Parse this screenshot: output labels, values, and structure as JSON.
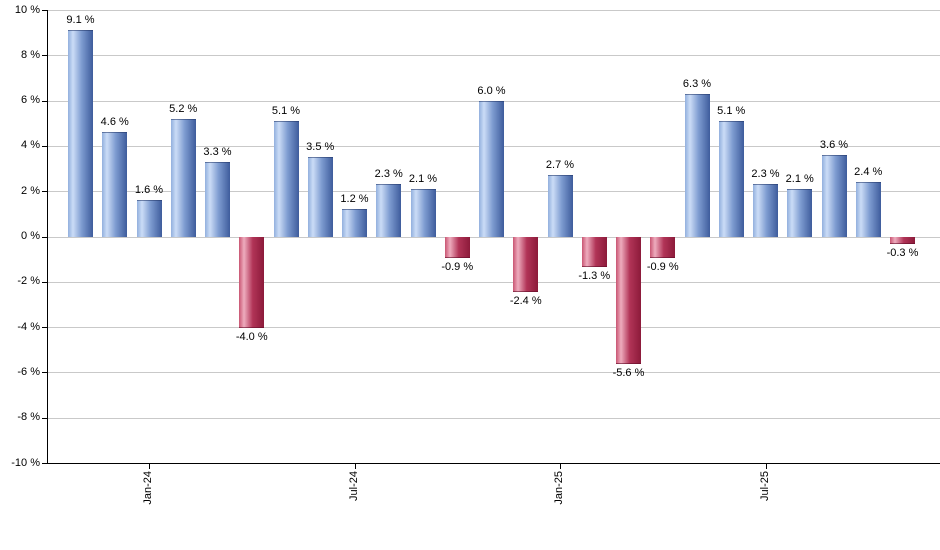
{
  "chart_data": {
    "type": "bar",
    "title": "",
    "xlabel": "",
    "ylabel": "",
    "ylim": [
      -10,
      10
    ],
    "y_tick_step": 2,
    "grid": true,
    "legend": false,
    "values": [
      9.1,
      4.6,
      1.6,
      5.2,
      3.3,
      -4.0,
      5.1,
      3.5,
      1.2,
      2.3,
      2.1,
      -0.9,
      6.0,
      -2.4,
      2.7,
      -1.3,
      -5.6,
      -0.9,
      6.3,
      5.1,
      2.3,
      2.1,
      3.6,
      2.4,
      -0.3
    ],
    "value_labels": [
      "9.1 %",
      "4.6 %",
      "1.6 %",
      "5.2 %",
      "3.3 %",
      "-4.0 %",
      "5.1 %",
      "3.5 %",
      "1.2 %",
      "2.3 %",
      "2.1 %",
      "-0.9 %",
      "6.0 %",
      "-2.4 %",
      "2.7 %",
      "-1.3 %",
      "-5.6 %",
      "-0.9 %",
      "6.3 %",
      "5.1 %",
      "2.3 %",
      "2.1 %",
      "3.6 %",
      "2.4 %",
      "-0.3 %"
    ],
    "y_tick_labels": [
      "10 %",
      "8 %",
      "6 %",
      "4 %",
      "2 %",
      "0 %",
      "-2 %",
      "-4 %",
      "-6 %",
      "-8 %",
      "-10 %"
    ],
    "y_tick_values": [
      10,
      8,
      6,
      4,
      2,
      0,
      -2,
      -4,
      -6,
      -8,
      -10
    ],
    "x_ticks": [
      {
        "bar_index": 2,
        "label": "Jan-24"
      },
      {
        "bar_index": 8,
        "label": "Jul-24"
      },
      {
        "bar_index": 14,
        "label": "Jan-25"
      },
      {
        "bar_index": 20,
        "label": "Jul-25"
      }
    ],
    "colors": {
      "positive_bar_gradient": [
        "#92b0de",
        "#cbdcf6",
        "#7d9bd0",
        "#3e5c9c"
      ],
      "negative_bar_gradient": [
        "#c95572",
        "#eeacbe",
        "#b13457",
        "#8c1a3a"
      ],
      "gridline": "#c9c9c9",
      "axis": "#000000",
      "label_text": "#000000",
      "background": "#ffffff"
    }
  }
}
